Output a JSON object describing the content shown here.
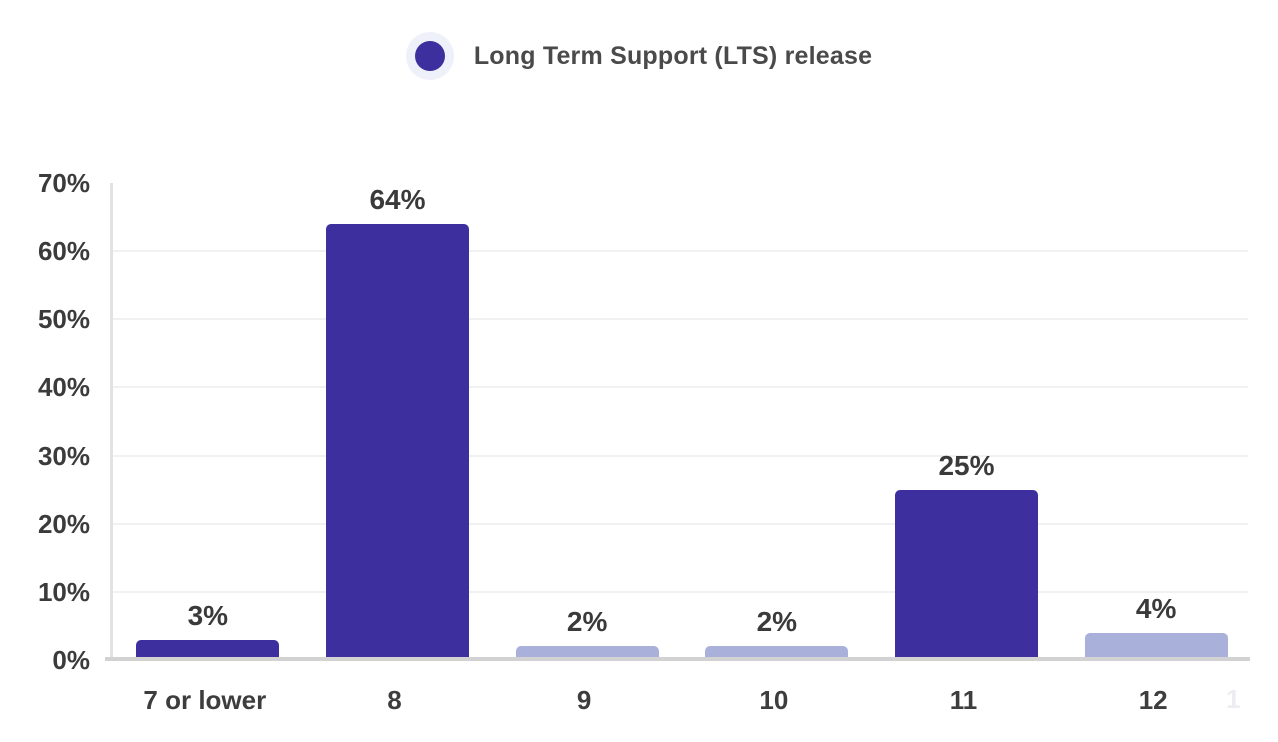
{
  "legend": {
    "label": "Long Term Support (LTS) release",
    "swatch_color": "#3d2f9e",
    "halo_color": "#eef1f9"
  },
  "chart_data": {
    "type": "bar",
    "title": "",
    "categories": [
      "7 or lower",
      "8",
      "9",
      "10",
      "11",
      "12"
    ],
    "series": [
      {
        "name": "Long Term Support (LTS) release",
        "values": [
          3,
          64,
          2,
          2,
          25,
          4
        ],
        "value_labels": [
          "3%",
          "64%",
          "2%",
          "2%",
          "25%",
          "4%"
        ],
        "is_lts": [
          true,
          true,
          false,
          false,
          true,
          false
        ]
      }
    ],
    "xlabel": "",
    "ylabel": "",
    "ylim": [
      0,
      70
    ],
    "y_ticks": [
      0,
      10,
      20,
      30,
      40,
      50,
      60,
      70
    ],
    "y_tick_labels": [
      "0%",
      "10%",
      "20%",
      "30%",
      "40%",
      "50%",
      "60%",
      "70%"
    ],
    "grid": "horizontal-light",
    "legend_position": "top-center",
    "colors": {
      "lts_bar": "#3d2f9e",
      "non_lts_bar": "#a9b1da"
    }
  },
  "corner": {
    "partial_label": "1"
  }
}
